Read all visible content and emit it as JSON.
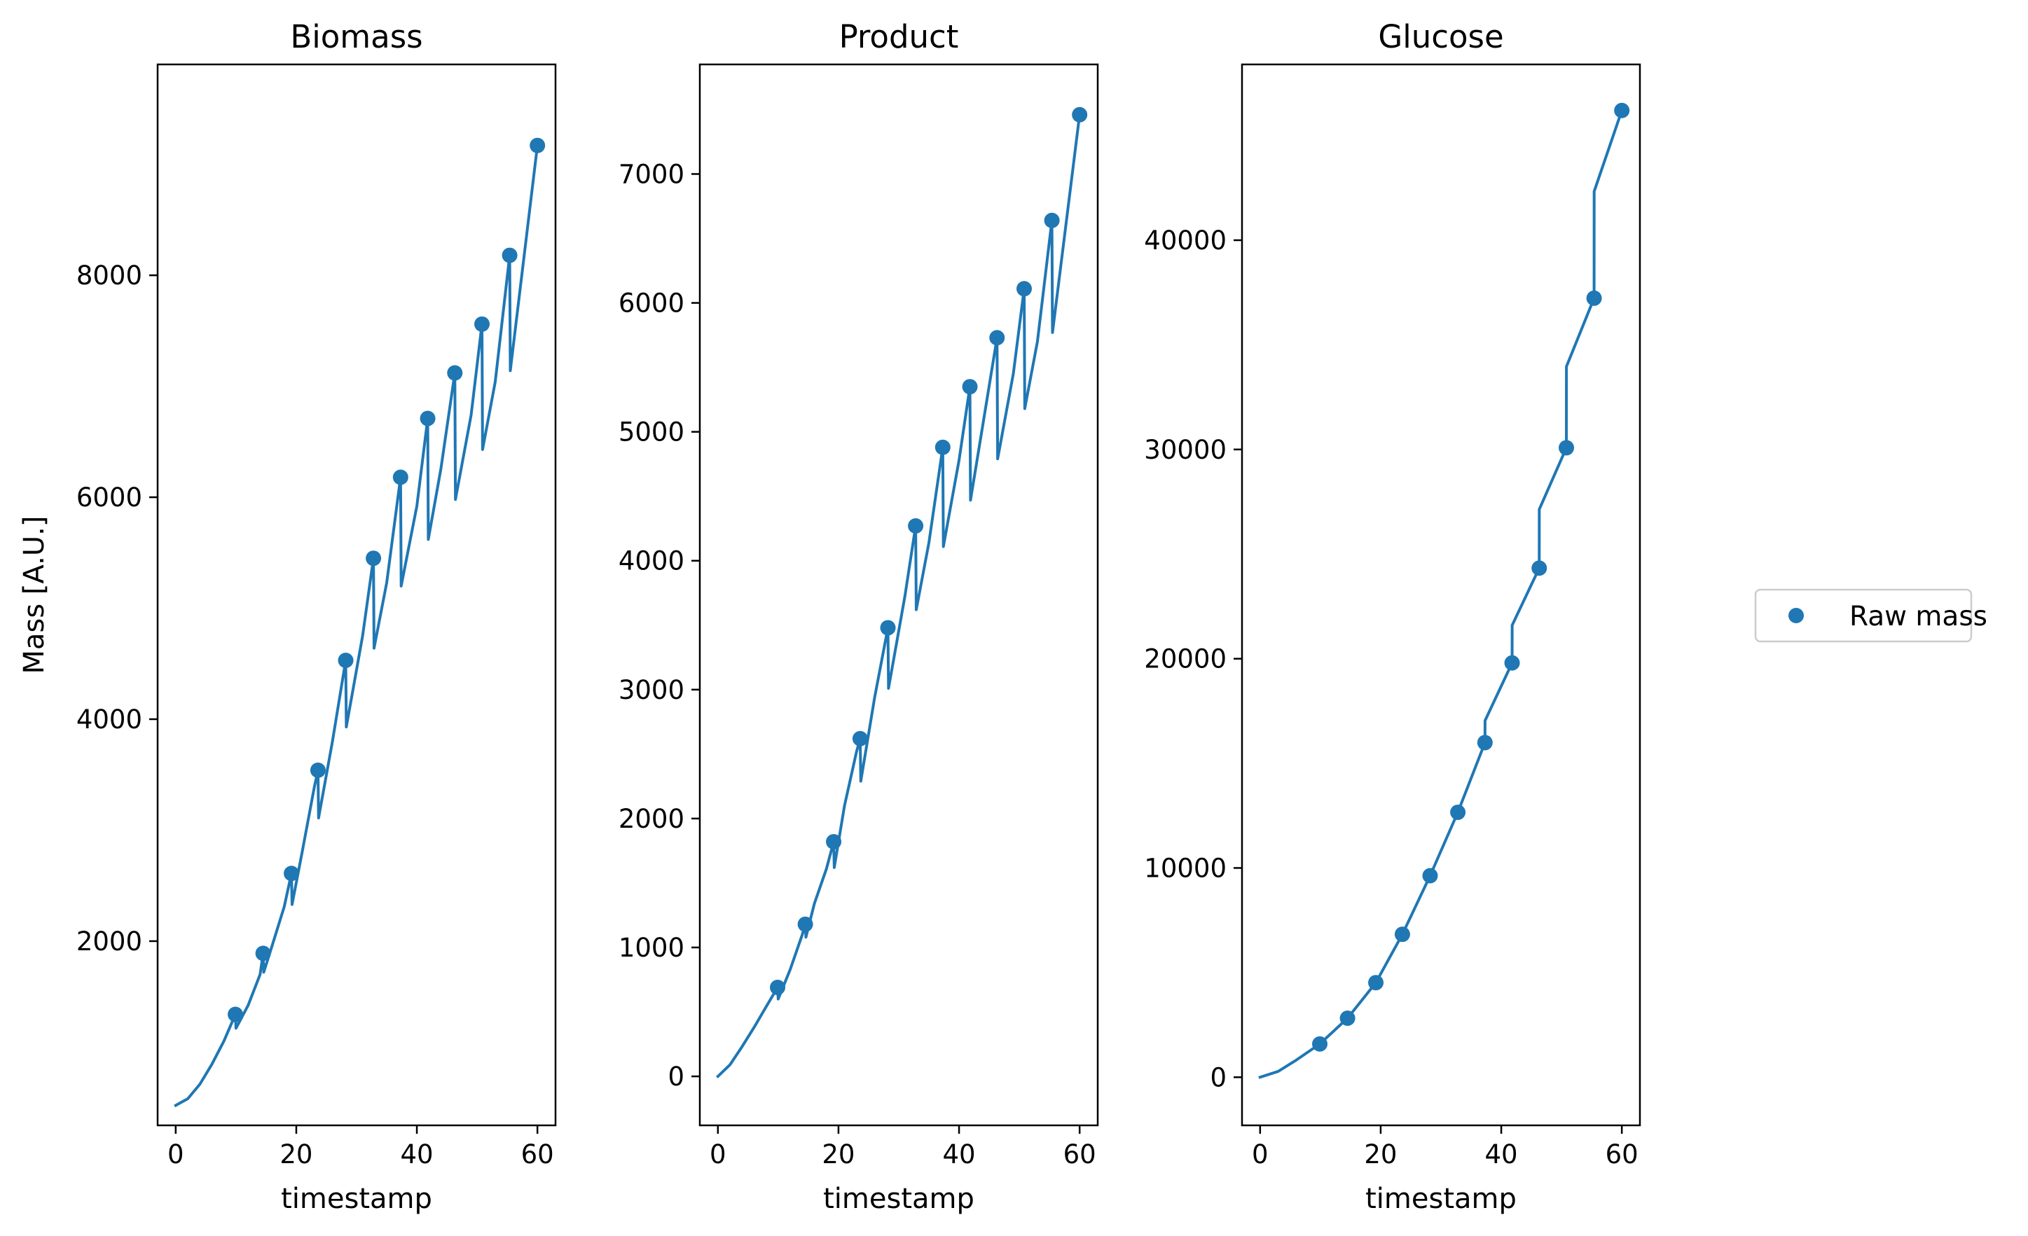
{
  "chart_data": [
    {
      "type": "line",
      "title": "Biomass",
      "xlabel": "timestamp",
      "ylabel": "Mass [A.U.]",
      "xlim": [
        -3,
        63
      ],
      "ylim": [
        340,
        9900
      ],
      "xticks": [
        0,
        20,
        40,
        60
      ],
      "yticks": [
        2000,
        4000,
        6000,
        8000
      ],
      "grid": false,
      "series": [
        {
          "kind": "line",
          "x": [
            0,
            2,
            4,
            6,
            8,
            9.9,
            10,
            12,
            14,
            14.5,
            14.6,
            16,
            18,
            19.2,
            19.3,
            21,
            23,
            23.6,
            23.7,
            26,
            28.2,
            28.3,
            31,
            32.8,
            32.9,
            35,
            37.3,
            37.4,
            40,
            41.8,
            41.9,
            44,
            46.3,
            46.4,
            49,
            50.8,
            50.9,
            53,
            55.4,
            55.5,
            60
          ],
          "y": [
            520,
            580,
            710,
            890,
            1100,
            1340,
            1215,
            1420,
            1700,
            1890,
            1720,
            1960,
            2310,
            2610,
            2330,
            2810,
            3390,
            3540,
            3110,
            3800,
            4530,
            3930,
            4750,
            5450,
            4640,
            5230,
            6180,
            5200,
            5920,
            6710,
            5620,
            6260,
            7120,
            5980,
            6740,
            7560,
            6430,
            7040,
            8180,
            7140,
            9170
          ]
        },
        {
          "kind": "scatter",
          "name": "Raw mass",
          "x": [
            9.9,
            14.5,
            19.2,
            23.6,
            28.2,
            32.8,
            37.3,
            41.8,
            46.3,
            50.8,
            55.4,
            60
          ],
          "y": [
            1340,
            1890,
            2610,
            3540,
            4530,
            5450,
            6180,
            6710,
            7120,
            7560,
            8180,
            9170
          ]
        }
      ]
    },
    {
      "type": "line",
      "title": "Product",
      "xlabel": "timestamp",
      "ylabel": "",
      "xlim": [
        -3,
        63
      ],
      "ylim": [
        -380,
        7850
      ],
      "xticks": [
        0,
        20,
        40,
        60
      ],
      "yticks": [
        0,
        1000,
        2000,
        3000,
        4000,
        5000,
        6000,
        7000
      ],
      "grid": false,
      "series": [
        {
          "kind": "line",
          "x": [
            0,
            2,
            4,
            6,
            8,
            9.9,
            10,
            12,
            14,
            14.5,
            14.6,
            16,
            18,
            19.2,
            19.3,
            21,
            23,
            23.6,
            23.7,
            26,
            28.2,
            28.3,
            31,
            32.8,
            32.9,
            35,
            37.3,
            37.4,
            40,
            41.8,
            41.9,
            44,
            46.3,
            46.4,
            49,
            50.8,
            50.9,
            53,
            55.4,
            55.5,
            60
          ],
          "y": [
            0,
            90,
            230,
            380,
            540,
            690,
            600,
            830,
            1100,
            1180,
            1080,
            1340,
            1610,
            1820,
            1620,
            2100,
            2520,
            2620,
            2290,
            2940,
            3480,
            3010,
            3720,
            4270,
            3620,
            4140,
            4880,
            4110,
            4780,
            5350,
            4470,
            5070,
            5730,
            4790,
            5450,
            6110,
            5180,
            5700,
            6640,
            5770,
            7460
          ]
        },
        {
          "kind": "scatter",
          "name": "Raw mass",
          "x": [
            9.9,
            14.5,
            19.2,
            23.6,
            28.2,
            32.8,
            37.3,
            41.8,
            46.3,
            50.8,
            55.4,
            60
          ],
          "y": [
            690,
            1180,
            1820,
            2620,
            3480,
            4270,
            4880,
            5350,
            5730,
            6110,
            6640,
            7460
          ]
        }
      ]
    },
    {
      "type": "line",
      "title": "Glucose",
      "xlabel": "timestamp",
      "ylabel": "",
      "xlim": [
        -3,
        63
      ],
      "ylim": [
        -2300,
        48400
      ],
      "xticks": [
        0,
        20,
        40,
        60
      ],
      "yticks": [
        0,
        10000,
        20000,
        30000,
        40000
      ],
      "grid": false,
      "series": [
        {
          "kind": "line",
          "x": [
            0,
            3,
            6,
            9.9,
            14.5,
            19.2,
            23.6,
            28.2,
            32.8,
            37.3,
            37.31,
            41.8,
            41.81,
            46.3,
            46.31,
            50.8,
            50.81,
            55.4,
            55.41,
            60
          ],
          "y": [
            0,
            280,
            820,
            1590,
            2820,
            4520,
            6830,
            9630,
            12660,
            15990,
            17040,
            19800,
            21600,
            24330,
            27140,
            30080,
            33960,
            37230,
            42330,
            46200
          ]
        },
        {
          "kind": "scatter",
          "name": "Raw mass",
          "x": [
            9.9,
            14.5,
            19.2,
            23.6,
            28.2,
            32.8,
            37.3,
            41.8,
            46.3,
            50.8,
            55.4,
            60
          ],
          "y": [
            1590,
            2820,
            4520,
            6830,
            9630,
            12660,
            15990,
            19800,
            24330,
            30080,
            37230,
            46200
          ]
        }
      ]
    }
  ],
  "legend": {
    "placement": "right",
    "entries": [
      "Raw mass"
    ]
  },
  "colors": {
    "series": "#1f77b4",
    "axes": "#000000",
    "legend_border": "#cccccc"
  }
}
